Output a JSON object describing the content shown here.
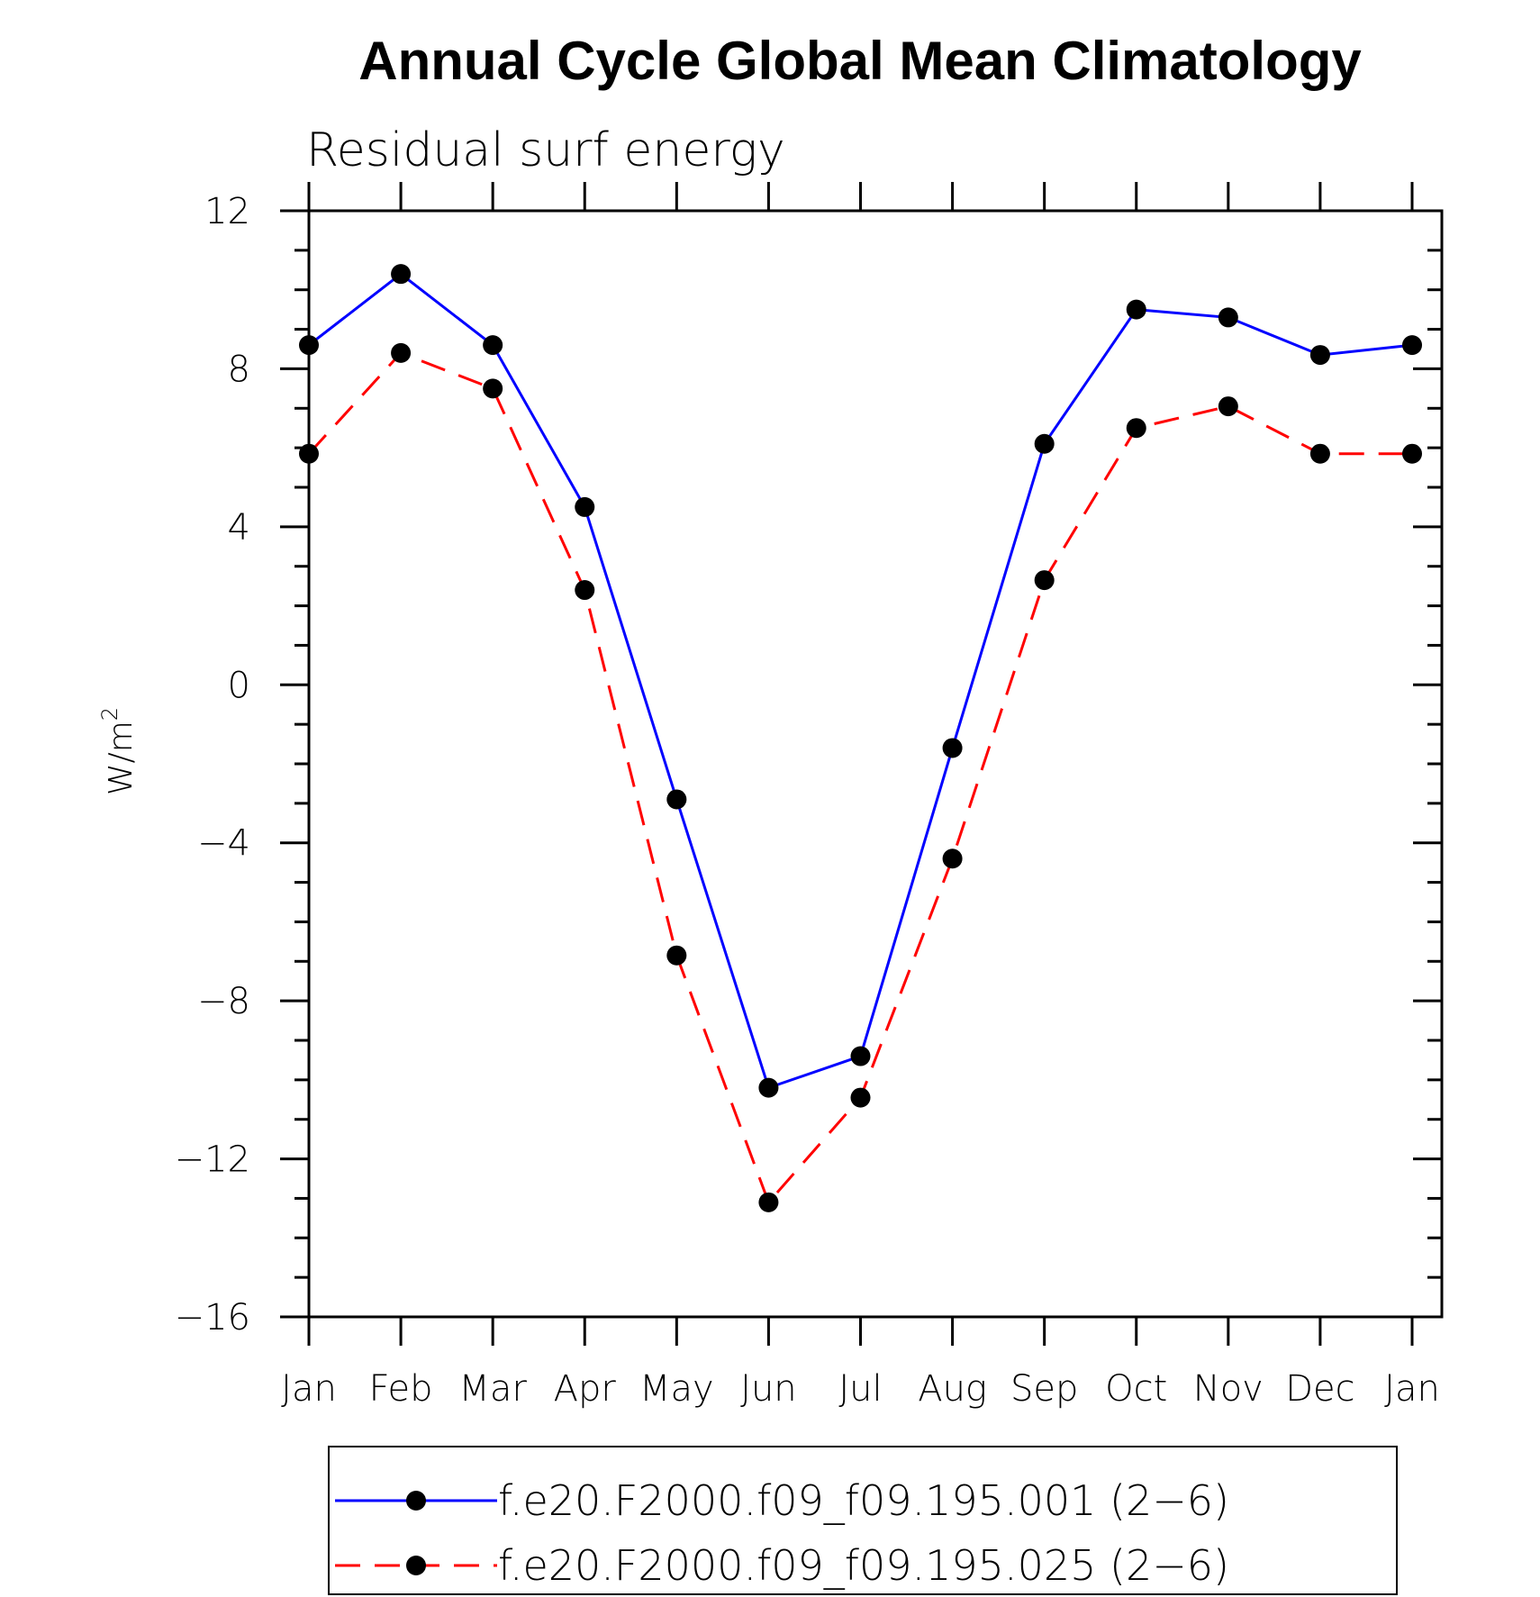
{
  "chart_data": {
    "type": "line",
    "title": "Annual Cycle Global Mean Climatology",
    "subtitle": "Residual surf energy",
    "xlabel": "",
    "ylabel": "W/m",
    "ylabel_superscript": "2",
    "categories": [
      "Jan",
      "Feb",
      "Mar",
      "Apr",
      "May",
      "Jun",
      "Jul",
      "Aug",
      "Sep",
      "Oct",
      "Nov",
      "Dec",
      "Jan"
    ],
    "ylim": [
      -16,
      12
    ],
    "yticks": [
      12,
      8,
      4,
      0,
      -4,
      -8,
      -12,
      -16
    ],
    "ytick_labels": [
      "12",
      "8",
      "4",
      "0",
      "−4",
      "−8",
      "−12",
      "−16"
    ],
    "y_minor_step": 1,
    "grid": false,
    "legend_position": "bottom",
    "series": [
      {
        "name": "f.e20.F2000.f09_f09.195.001 (2−6)",
        "color": "#0000ff",
        "dash": "solid",
        "marker": "filled-circle",
        "marker_color": "#000000",
        "values": [
          8.6,
          10.4,
          8.6,
          4.5,
          -2.9,
          -10.2,
          -9.4,
          -1.6,
          6.1,
          9.5,
          9.3,
          8.35,
          8.6
        ]
      },
      {
        "name": "f.e20.F2000.f09_f09.195.025 (2−6)",
        "color": "#ff0000",
        "dash": "dashed",
        "marker": "filled-circle",
        "marker_color": "#000000",
        "values": [
          5.85,
          8.4,
          7.5,
          2.4,
          -6.85,
          -13.1,
          -10.45,
          -4.4,
          2.65,
          6.5,
          7.05,
          5.85,
          5.85
        ]
      }
    ]
  }
}
